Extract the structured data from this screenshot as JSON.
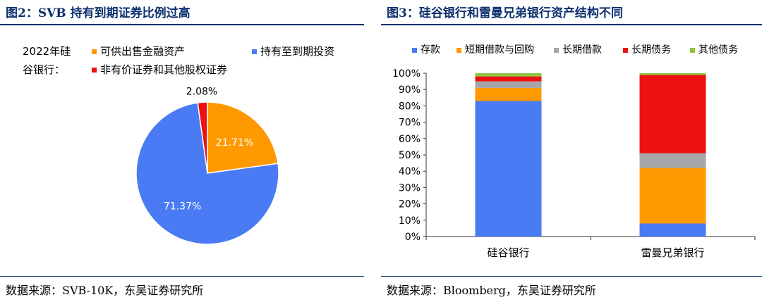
{
  "figures": [
    {
      "title": "图2：SVB 持有到期证券比例过高",
      "source": "数据来源：SVB-10K，东吴证券研究所"
    },
    {
      "title": "图3：硅谷银行和雷曼兄弟银行资产结构不同",
      "source": "数据来源：Bloomberg，东吴证券研究所"
    }
  ],
  "chart_data": [
    {
      "type": "pie",
      "legend_title": "2022年硅谷银行：",
      "slices": [
        {
          "name": "可供出售金融资产",
          "value": 21.71,
          "label": "21.71%",
          "color": "#FF9900"
        },
        {
          "name": "持有至到期投资",
          "value": 71.37,
          "label": "71.37%",
          "color": "#4A7BF4"
        },
        {
          "name": "非有价证券和其他股权证券",
          "value": 2.08,
          "label": "2.08%",
          "color": "#EE1111"
        }
      ]
    },
    {
      "type": "bar",
      "stacked": true,
      "categories": [
        "硅谷银行",
        "雷曼兄弟银行"
      ],
      "ylim": [
        0,
        100
      ],
      "yticks": [
        "0%",
        "10%",
        "20%",
        "30%",
        "40%",
        "50%",
        "60%",
        "70%",
        "80%",
        "90%",
        "100%"
      ],
      "series": [
        {
          "name": "存款",
          "color": "#4A7BF4",
          "values": [
            83,
            8
          ]
        },
        {
          "name": "短期借款与回购",
          "color": "#FF9900",
          "values": [
            8,
            34
          ]
        },
        {
          "name": "长期借款",
          "color": "#A6A6A6",
          "values": [
            4,
            9
          ]
        },
        {
          "name": "长期债务",
          "color": "#EE1111",
          "values": [
            3,
            48
          ]
        },
        {
          "name": "其他债务",
          "color": "#8CC63F",
          "values": [
            2,
            1
          ]
        }
      ]
    }
  ]
}
